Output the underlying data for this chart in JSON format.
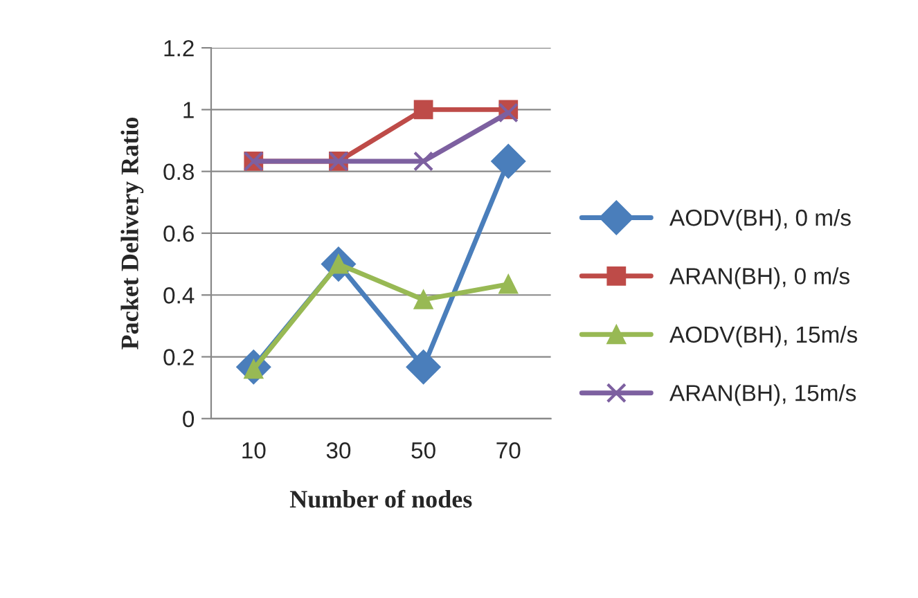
{
  "chart_data": {
    "type": "line",
    "xlabel": "Number of nodes",
    "ylabel": "Packet Delivery Ratio",
    "categories": [
      "10",
      "30",
      "50",
      "70"
    ],
    "series": [
      {
        "name": "AODV(BH), 0 m/s",
        "color": "#4a7ebb",
        "marker": "diamond",
        "values": [
          0.167,
          0.5,
          0.167,
          0.833
        ]
      },
      {
        "name": "ARAN(BH), 0 m/s",
        "color": "#be4b48",
        "marker": "square",
        "values": [
          0.833,
          0.833,
          1.0,
          1.0
        ]
      },
      {
        "name": "AODV(BH), 15m/s",
        "color": "#98b954",
        "marker": "triangle",
        "values": [
          0.16,
          0.5,
          0.385,
          0.435
        ]
      },
      {
        "name": "ARAN(BH), 15m/s",
        "color": "#7d60a0",
        "marker": "cross",
        "values": [
          0.833,
          0.833,
          0.833,
          0.99
        ]
      }
    ],
    "ylim": [
      0,
      1.2
    ],
    "yticks": [
      0,
      0.2,
      0.4,
      0.6,
      0.8,
      1,
      1.2
    ],
    "grid": "y",
    "legend": "right",
    "line_style": "solid"
  }
}
